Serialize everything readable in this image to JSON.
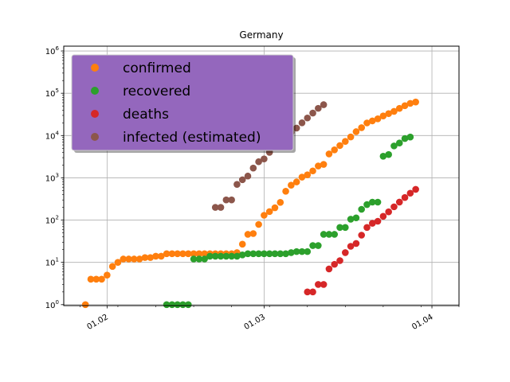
{
  "chart_data": {
    "type": "scatter",
    "title": "Germany",
    "xlabel": "",
    "ylabel": "",
    "yscale": "log",
    "grid": true,
    "ylim": [
      0.95,
      1300000
    ],
    "xlim": [
      "2020-01-24",
      "2020-04-06"
    ],
    "x_ticks": [
      {
        "date": "2020-02-01",
        "label": "01.02"
      },
      {
        "date": "2020-03-01",
        "label": "01.03"
      },
      {
        "date": "2020-04-01",
        "label": "01.04"
      }
    ],
    "y_ticks": [
      {
        "value": 1,
        "base": "10",
        "exp": "0"
      },
      {
        "value": 10,
        "base": "10",
        "exp": "1"
      },
      {
        "value": 100,
        "base": "10",
        "exp": "2"
      },
      {
        "value": 1000,
        "base": "10",
        "exp": "3"
      },
      {
        "value": 10000,
        "base": "10",
        "exp": "4"
      },
      {
        "value": 100000,
        "base": "10",
        "exp": "5"
      },
      {
        "value": 1000000,
        "base": "10",
        "exp": "6"
      }
    ],
    "legend": {
      "position": "upper-left",
      "background": "#9467bd"
    },
    "series": [
      {
        "name": "confirmed",
        "color": "#ff7f0e",
        "points": [
          [
            "2020-01-28",
            1
          ],
          [
            "2020-01-29",
            4
          ],
          [
            "2020-01-30",
            4
          ],
          [
            "2020-01-31",
            4
          ],
          [
            "2020-02-01",
            5
          ],
          [
            "2020-02-02",
            8
          ],
          [
            "2020-02-03",
            10
          ],
          [
            "2020-02-04",
            12
          ],
          [
            "2020-02-05",
            12
          ],
          [
            "2020-02-06",
            12
          ],
          [
            "2020-02-07",
            12
          ],
          [
            "2020-02-08",
            13
          ],
          [
            "2020-02-09",
            13
          ],
          [
            "2020-02-10",
            14
          ],
          [
            "2020-02-11",
            14
          ],
          [
            "2020-02-12",
            16
          ],
          [
            "2020-02-13",
            16
          ],
          [
            "2020-02-14",
            16
          ],
          [
            "2020-02-15",
            16
          ],
          [
            "2020-02-16",
            16
          ],
          [
            "2020-02-17",
            16
          ],
          [
            "2020-02-18",
            16
          ],
          [
            "2020-02-19",
            16
          ],
          [
            "2020-02-20",
            16
          ],
          [
            "2020-02-21",
            16
          ],
          [
            "2020-02-22",
            16
          ],
          [
            "2020-02-23",
            16
          ],
          [
            "2020-02-24",
            16
          ],
          [
            "2020-02-25",
            17
          ],
          [
            "2020-02-26",
            27
          ],
          [
            "2020-02-27",
            46
          ],
          [
            "2020-02-28",
            48
          ],
          [
            "2020-02-29",
            79
          ],
          [
            "2020-03-01",
            130
          ],
          [
            "2020-03-02",
            159
          ],
          [
            "2020-03-03",
            196
          ],
          [
            "2020-03-04",
            262
          ],
          [
            "2020-03-05",
            482
          ],
          [
            "2020-03-06",
            670
          ],
          [
            "2020-03-07",
            799
          ],
          [
            "2020-03-08",
            1040
          ],
          [
            "2020-03-09",
            1176
          ],
          [
            "2020-03-10",
            1457
          ],
          [
            "2020-03-11",
            1908
          ],
          [
            "2020-03-12",
            2078
          ],
          [
            "2020-03-13",
            3675
          ],
          [
            "2020-03-14",
            4585
          ],
          [
            "2020-03-15",
            5795
          ],
          [
            "2020-03-16",
            7272
          ],
          [
            "2020-03-17",
            9257
          ],
          [
            "2020-03-18",
            12327
          ],
          [
            "2020-03-19",
            15320
          ],
          [
            "2020-03-20",
            19848
          ],
          [
            "2020-03-21",
            22213
          ],
          [
            "2020-03-22",
            24873
          ],
          [
            "2020-03-23",
            29056
          ],
          [
            "2020-03-24",
            32986
          ],
          [
            "2020-03-25",
            37323
          ],
          [
            "2020-03-26",
            43938
          ],
          [
            "2020-03-27",
            50871
          ],
          [
            "2020-03-28",
            57695
          ],
          [
            "2020-03-29",
            62095
          ]
        ]
      },
      {
        "name": "recovered",
        "color": "#2ca02c",
        "points": [
          [
            "2020-02-12",
            1
          ],
          [
            "2020-02-13",
            1
          ],
          [
            "2020-02-14",
            1
          ],
          [
            "2020-02-15",
            1
          ],
          [
            "2020-02-16",
            1
          ],
          [
            "2020-02-17",
            12
          ],
          [
            "2020-02-18",
            12
          ],
          [
            "2020-02-19",
            12
          ],
          [
            "2020-02-20",
            14
          ],
          [
            "2020-02-21",
            14
          ],
          [
            "2020-02-22",
            14
          ],
          [
            "2020-02-23",
            14
          ],
          [
            "2020-02-24",
            14
          ],
          [
            "2020-02-25",
            14
          ],
          [
            "2020-02-26",
            15
          ],
          [
            "2020-02-27",
            16
          ],
          [
            "2020-02-28",
            16
          ],
          [
            "2020-02-29",
            16
          ],
          [
            "2020-03-01",
            16
          ],
          [
            "2020-03-02",
            16
          ],
          [
            "2020-03-03",
            16
          ],
          [
            "2020-03-04",
            16
          ],
          [
            "2020-03-05",
            16
          ],
          [
            "2020-03-06",
            17
          ],
          [
            "2020-03-07",
            18
          ],
          [
            "2020-03-08",
            18
          ],
          [
            "2020-03-09",
            18
          ],
          [
            "2020-03-10",
            25
          ],
          [
            "2020-03-11",
            25
          ],
          [
            "2020-03-12",
            46
          ],
          [
            "2020-03-13",
            46
          ],
          [
            "2020-03-14",
            46
          ],
          [
            "2020-03-15",
            67
          ],
          [
            "2020-03-16",
            67
          ],
          [
            "2020-03-17",
            105
          ],
          [
            "2020-03-18",
            113
          ],
          [
            "2020-03-19",
            180
          ],
          [
            "2020-03-20",
            233
          ],
          [
            "2020-03-21",
            266
          ],
          [
            "2020-03-22",
            266
          ],
          [
            "2020-03-23",
            3243
          ],
          [
            "2020-03-24",
            3547
          ],
          [
            "2020-03-25",
            5673
          ],
          [
            "2020-03-26",
            6658
          ],
          [
            "2020-03-27",
            8481
          ],
          [
            "2020-03-28",
            9211
          ]
        ]
      },
      {
        "name": "deaths",
        "color": "#d62728",
        "points": [
          [
            "2020-03-09",
            2
          ],
          [
            "2020-03-10",
            2
          ],
          [
            "2020-03-11",
            3
          ],
          [
            "2020-03-12",
            3
          ],
          [
            "2020-03-13",
            7
          ],
          [
            "2020-03-14",
            9
          ],
          [
            "2020-03-15",
            11
          ],
          [
            "2020-03-16",
            17
          ],
          [
            "2020-03-17",
            24
          ],
          [
            "2020-03-18",
            28
          ],
          [
            "2020-03-19",
            44
          ],
          [
            "2020-03-20",
            67
          ],
          [
            "2020-03-21",
            84
          ],
          [
            "2020-03-22",
            94
          ],
          [
            "2020-03-23",
            123
          ],
          [
            "2020-03-24",
            157
          ],
          [
            "2020-03-25",
            206
          ],
          [
            "2020-03-26",
            267
          ],
          [
            "2020-03-27",
            342
          ],
          [
            "2020-03-28",
            433
          ],
          [
            "2020-03-29",
            533
          ]
        ]
      },
      {
        "name": "infected (estimated)",
        "color": "#8c564b",
        "points": [
          [
            "2020-02-21",
            200
          ],
          [
            "2020-02-22",
            200
          ],
          [
            "2020-02-23",
            300
          ],
          [
            "2020-02-24",
            300
          ],
          [
            "2020-02-25",
            700
          ],
          [
            "2020-02-26",
            900
          ],
          [
            "2020-02-27",
            1100
          ],
          [
            "2020-02-28",
            1700
          ],
          [
            "2020-02-29",
            2400
          ],
          [
            "2020-03-01",
            2800
          ],
          [
            "2020-03-02",
            4000
          ],
          [
            "2020-03-03",
            5500
          ],
          [
            "2020-03-04",
            8500
          ],
          [
            "2020-03-05",
            9500
          ],
          [
            "2020-03-06",
            12000
          ],
          [
            "2020-03-07",
            15000
          ],
          [
            "2020-03-08",
            20000
          ],
          [
            "2020-03-09",
            26000
          ],
          [
            "2020-03-10",
            34000
          ],
          [
            "2020-03-11",
            44000
          ],
          [
            "2020-03-12",
            53600
          ]
        ]
      }
    ]
  }
}
